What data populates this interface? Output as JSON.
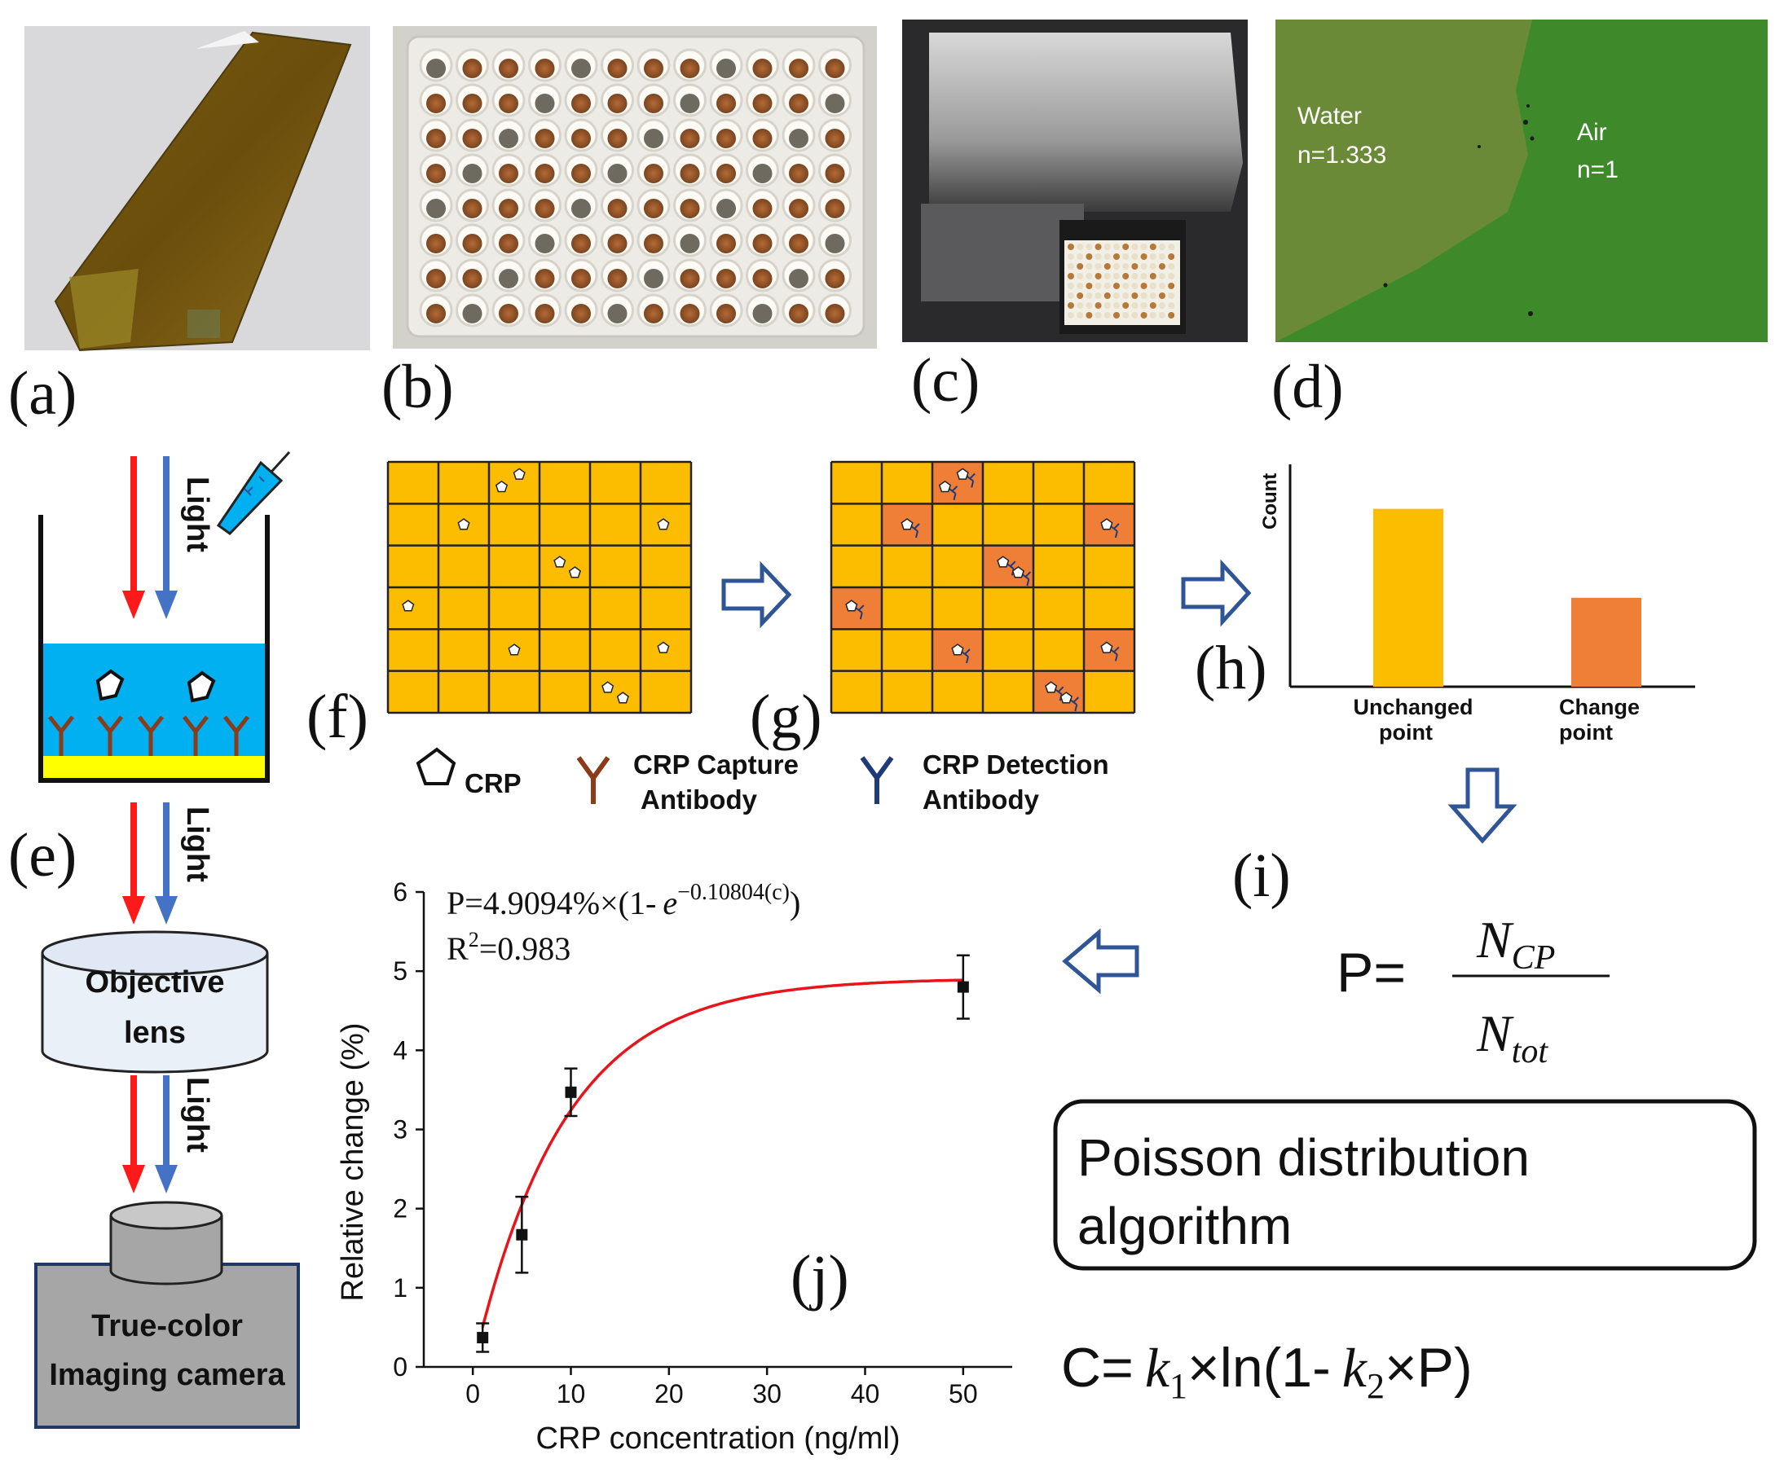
{
  "panel_labels": {
    "a": "(a)",
    "b": "(b)",
    "c": "(c)",
    "d": "(d)",
    "e": "(e)",
    "f": "(f)",
    "g": "(g)",
    "h": "(h)",
    "i": "(i)",
    "j": "(j)"
  },
  "photo_d": {
    "water_label": "Water",
    "water_n": "n=1.333",
    "air_label": "Air",
    "air_n": "n=1"
  },
  "setup_e": {
    "light_label": "Light",
    "objective_line1": "Objective",
    "objective_line2": "lens",
    "camera_line1": "True-color",
    "camera_line2": "Imaging camera"
  },
  "legend": {
    "crp": "CRP",
    "capture_line1": "CRP Capture",
    "capture_line2": "Antibody",
    "detection_line1": "CRP Detection",
    "detection_line2": "Antibody"
  },
  "colors": {
    "cell_fill": "#fcbc00",
    "changed_cell": "#ef7f37",
    "grid_line": "#222222",
    "arrow_outline": "#2f5597",
    "fit_curve": "#e8141c",
    "water": "#00b0f0",
    "substrate": "#ffff00"
  },
  "grid_f": {
    "rows": 6,
    "cols": 6,
    "crp_dots": [
      [
        0,
        2,
        0.25,
        0.6
      ],
      [
        0,
        2,
        0.6,
        0.3
      ],
      [
        1,
        1,
        0.5,
        0.5
      ],
      [
        1,
        5,
        0.45,
        0.5
      ],
      [
        2,
        3,
        0.4,
        0.4
      ],
      [
        2,
        3,
        0.7,
        0.65
      ],
      [
        3,
        0,
        0.4,
        0.45
      ],
      [
        4,
        2,
        0.5,
        0.5
      ],
      [
        4,
        5,
        0.45,
        0.45
      ],
      [
        5,
        4,
        0.35,
        0.4
      ],
      [
        5,
        4,
        0.65,
        0.65
      ]
    ]
  },
  "grid_g": {
    "rows": 6,
    "cols": 6,
    "changed_cells": [
      [
        0,
        2
      ],
      [
        1,
        1
      ],
      [
        1,
        5
      ],
      [
        2,
        3
      ],
      [
        3,
        0
      ],
      [
        4,
        2
      ],
      [
        4,
        5
      ],
      [
        5,
        4
      ]
    ]
  },
  "histogram_h": {
    "chart_data": {
      "type": "bar",
      "categories": [
        "Unchanged point",
        "Change point"
      ],
      "values": [
        0.8,
        0.4
      ],
      "ylabel": "Count"
    },
    "cat1_line1": "Unchanged",
    "cat1_line2": "point",
    "cat2_line1": "Change",
    "cat2_line2": "point"
  },
  "formula_i": {
    "lhs": "P=",
    "numerator": "N",
    "numerator_sub": "CP",
    "denominator": "N",
    "denominator_sub": "tot"
  },
  "poisson_box": {
    "line1": "Poisson distribution",
    "line2": "algorithm"
  },
  "formula_c": {
    "prefix": "C=",
    "k1": "k",
    "k1_sub": "1",
    "mid": "×ln(1-",
    "k2": "k",
    "k2_sub": "2",
    "suffix": "×P)"
  },
  "chart_j": {
    "eq_prefix": "P=4.9094%×(1-",
    "eq_e": "e",
    "eq_exp": "−0.10804(c)",
    "eq_suffix": ")",
    "r2_prefix": "R",
    "r2_sup": "2",
    "r2_value": "=0.983",
    "chart_data": {
      "type": "scatter",
      "x": [
        1,
        5,
        10,
        50
      ],
      "y": [
        0.37,
        1.67,
        3.47,
        4.8
      ],
      "yerr": [
        0.18,
        0.48,
        0.3,
        0.4
      ],
      "fit": {
        "model": "A*(1-exp(-k*c))",
        "A": 4.9094,
        "k": 0.10804
      },
      "xlabel": "CRP concentration (ng/ml)",
      "ylabel": "Relative change (%)",
      "xlim": [
        -5,
        55
      ],
      "ylim": [
        0,
        6
      ],
      "xticks": [
        0,
        10,
        20,
        30,
        40,
        50
      ],
      "yticks": [
        0,
        1,
        2,
        3,
        4,
        5,
        6
      ]
    }
  }
}
